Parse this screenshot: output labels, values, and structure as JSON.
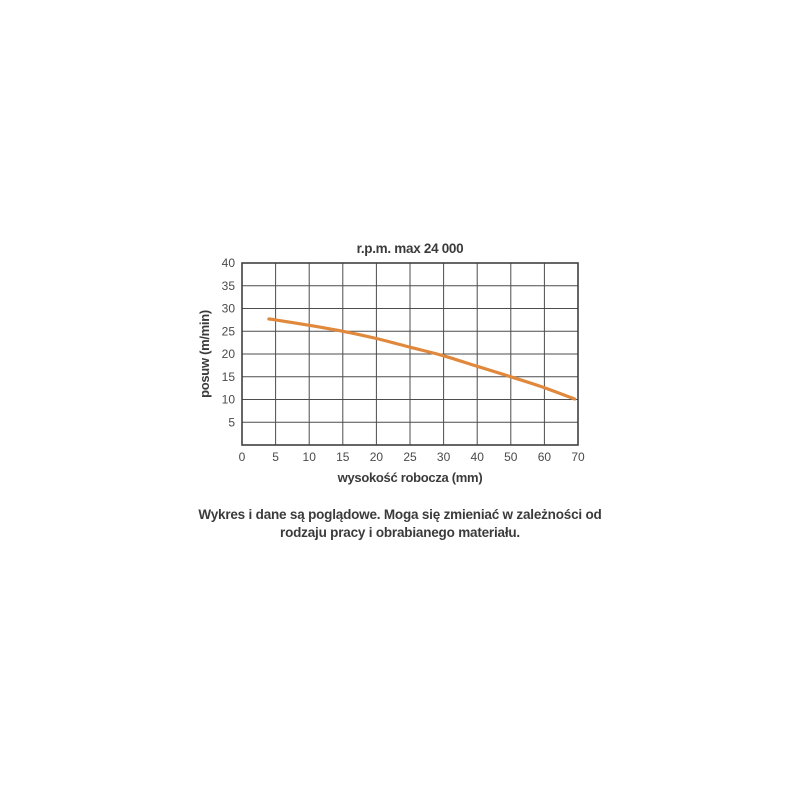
{
  "chart_data": {
    "type": "line",
    "title": "r.p.m. max 24 000",
    "xlabel": "wysokość robocza (mm)",
    "ylabel": "posuw (m/min)",
    "x_ticks": [
      "0",
      "5",
      "10",
      "15",
      "20",
      "25",
      "30",
      "40",
      "50",
      "60",
      "70"
    ],
    "y_ticks": [
      "5",
      "10",
      "15",
      "20",
      "25",
      "30",
      "35",
      "40"
    ],
    "ylim": [
      0,
      40
    ],
    "grid": true,
    "legend": "none",
    "x_scale_note": "ticks equally spaced on axis: step 5 from 0-30, step 10 from 30-70",
    "series": [
      {
        "color": "#E0883C",
        "points": [
          [
            4,
            27.7
          ],
          [
            5,
            27.5
          ],
          [
            10,
            26.3
          ],
          [
            15,
            25.0
          ],
          [
            20,
            23.4
          ],
          [
            25,
            21.5
          ],
          [
            30,
            19.6
          ],
          [
            40,
            17.3
          ],
          [
            50,
            15.0
          ],
          [
            60,
            12.6
          ],
          [
            69,
            10.1
          ]
        ]
      }
    ]
  },
  "caption": {
    "line1": "Wykres i dane są poglądowe. Moga się zmieniać w zależności od",
    "line2": "rodzaju pracy i obrabianego materiału."
  },
  "colors": {
    "background": "#ffffff",
    "grid": "#4d4d4d",
    "border": "#404040",
    "text": "#3b3b3b",
    "tick_text": "#4a4a4a",
    "curve": "#E0883C"
  }
}
